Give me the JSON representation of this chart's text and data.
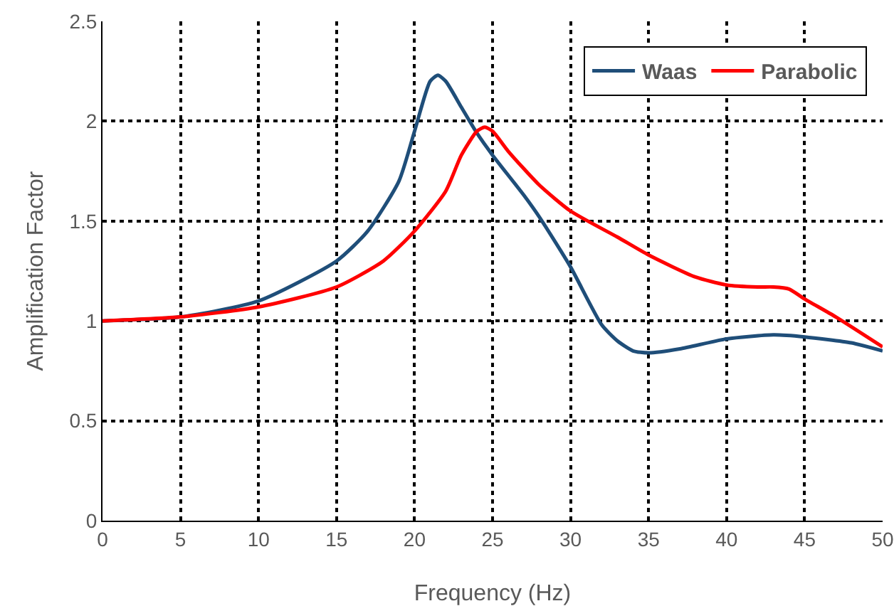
{
  "chart_data": {
    "type": "line",
    "xlabel": "Frequency (Hz)",
    "ylabel": "Amplification Factor",
    "xlim": [
      0,
      50
    ],
    "xticks": [
      0,
      5,
      10,
      15,
      20,
      25,
      30,
      35,
      40,
      45,
      50
    ],
    "ylim": [
      0,
      2.5
    ],
    "yticks": [
      0,
      0.5,
      1,
      1.5,
      2,
      2.5
    ],
    "grid": true,
    "legend": "top right",
    "marker": "none",
    "line_style": "solid",
    "series": [
      {
        "name": "Waas",
        "color": "#1f4e79",
        "x": [
          0,
          5,
          10,
          15,
          17,
          19,
          20,
          21,
          21.5,
          22,
          23,
          24,
          25,
          27,
          28,
          30,
          32,
          33,
          34,
          35,
          37,
          40,
          43,
          45,
          48,
          50
        ],
        "values": [
          1,
          1.02,
          1.1,
          1.3,
          1.45,
          1.7,
          1.95,
          2.2,
          2.23,
          2.2,
          2.07,
          1.94,
          1.83,
          1.63,
          1.52,
          1.27,
          0.98,
          0.9,
          0.85,
          0.84,
          0.86,
          0.91,
          0.93,
          0.92,
          0.89,
          0.85
        ]
      },
      {
        "name": "Parabolic",
        "color": "#ff0000",
        "x": [
          0,
          5,
          10,
          15,
          18,
          20,
          22,
          23,
          24,
          24.5,
          25,
          26,
          28,
          30,
          33,
          35,
          38,
          40,
          42,
          43,
          44,
          45,
          47,
          50
        ],
        "values": [
          1,
          1.02,
          1.07,
          1.17,
          1.3,
          1.45,
          1.65,
          1.83,
          1.95,
          1.97,
          1.95,
          1.85,
          1.68,
          1.55,
          1.42,
          1.33,
          1.22,
          1.18,
          1.17,
          1.17,
          1.16,
          1.11,
          1.02,
          0.87
        ]
      }
    ]
  }
}
